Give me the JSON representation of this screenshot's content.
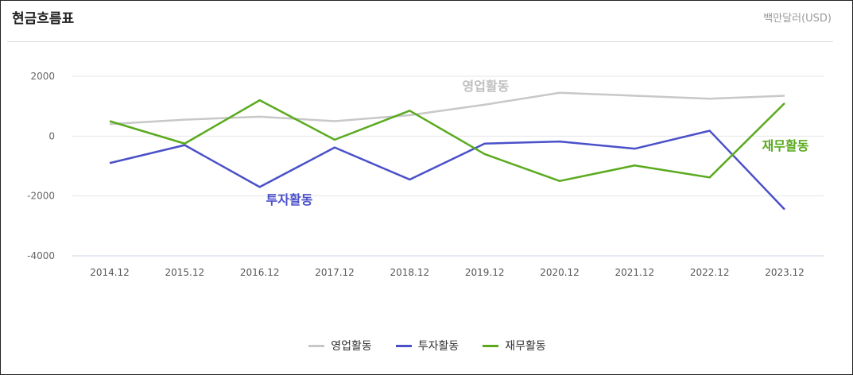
{
  "header": {
    "title": "현금흐름표",
    "unit": "백만달러(USD)"
  },
  "chart_data": {
    "type": "line",
    "categories": [
      "2014.12",
      "2015.12",
      "2016.12",
      "2017.12",
      "2018.12",
      "2019.12",
      "2020.12",
      "2021.12",
      "2022.12",
      "2023.12"
    ],
    "series": [
      {
        "name": "영업활동",
        "color": "#c8c8c8",
        "values": [
          400,
          550,
          650,
          500,
          700,
          1050,
          1450,
          1350,
          1250,
          1350
        ]
      },
      {
        "name": "투자활동",
        "color": "#4a50c8",
        "values": [
          -900,
          -300,
          -1700,
          -380,
          -1450,
          -250,
          -180,
          -420,
          180,
          -2450
        ]
      },
      {
        "name": "재무활동",
        "color": "#5aaa1e",
        "values": [
          500,
          -250,
          1200,
          -120,
          850,
          -600,
          -1500,
          -980,
          -1380,
          1100
        ]
      }
    ],
    "annotations": [
      {
        "text": "영업활동",
        "series": "영업활동",
        "color": "#c0c0c0"
      },
      {
        "text": "투자활동",
        "series": "투자활동",
        "color": "#4a50c8"
      },
      {
        "text": "재무활동",
        "series": "재무활동",
        "color": "#5aaa1e"
      }
    ],
    "yticks": [
      2000,
      0,
      -2000,
      -4000
    ],
    "ylim": [
      -4000,
      2000
    ],
    "grid": true,
    "legend": "bottom-center"
  }
}
